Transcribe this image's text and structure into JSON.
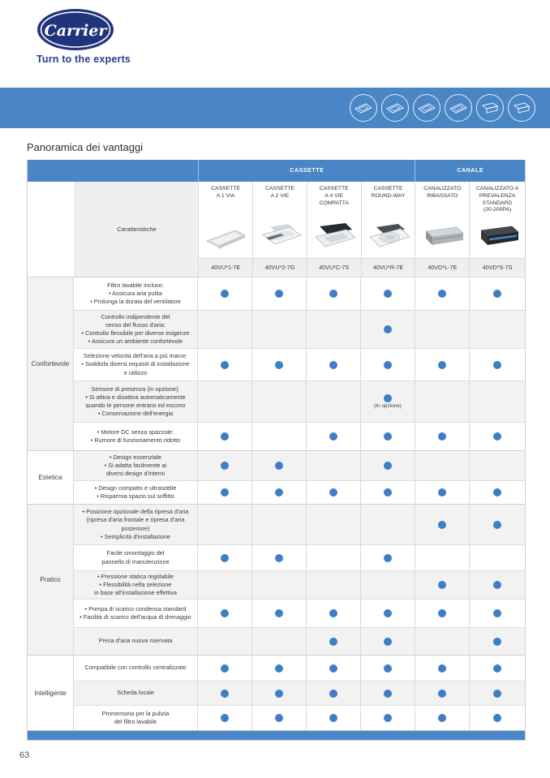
{
  "brand": {
    "logo_text": "Carrier",
    "tagline": "Turn to the experts"
  },
  "page": {
    "title": "Panoramica dei vantaggi",
    "page_number": "63"
  },
  "colors": {
    "accent_blue": "#4a86c6",
    "dot_blue": "#3d7ec6",
    "logo_navy": "#21337b"
  },
  "banner": {
    "icons": [
      "cassette-1-via-icon",
      "cassette-2-vie-icon",
      "cassette-4-vie-compatta-icon",
      "cassette-round-way-icon",
      "canalizzato-ribassato-icon",
      "canalizzato-standard-icon"
    ]
  },
  "table": {
    "top_header": [
      {
        "label": "",
        "span": 2
      },
      {
        "label": "CASSETTE",
        "span": 4
      },
      {
        "label": "CANALE",
        "span": 2
      }
    ],
    "characteristics_label": "Caratteristiche",
    "products": [
      {
        "name": "CASSETTE\nA 1 VIA",
        "model": "40VU*1-7E",
        "icon": "cassette-1-via"
      },
      {
        "name": "CASSETTE\nA 2 VIE",
        "model": "40VU*2-7G",
        "icon": "cassette-2-vie"
      },
      {
        "name": "CASSETTE\nA 4 VIE\nCOMPATTA",
        "model": "40VU*C-7S",
        "icon": "cassette-4-vie-compatta"
      },
      {
        "name": "CASSETTE\nROUND-WAY",
        "model": "40VU*R-7E",
        "icon": "cassette-round-way"
      },
      {
        "name": "CANALIZZATO\nRIBASSATO",
        "model": "40VD*L-7E",
        "icon": "canalizzato-ribassato"
      },
      {
        "name": "CANALIZZATO A\nPREVALENZA\nSTANDARD\n(20-200PA)",
        "model": "40VD*S-7S",
        "icon": "canalizzato-standard"
      }
    ],
    "sections": [
      {
        "label": "Confortevole",
        "rows": [
          {
            "text": "Filtro lavabile incluso:\n• Assicura aria pulita\n• Prolunga la durata del ventilatore",
            "dots": [
              1,
              1,
              1,
              1,
              1,
              1
            ]
          },
          {
            "text": "Controllo indipendente del\nsenso del flusso d'aria:\n• Controllo flessibile per diverse esigenze\n• Assicura un ambiente confortevole",
            "dots": [
              0,
              0,
              0,
              1,
              0,
              0
            ]
          },
          {
            "text": "Selezione velocità dell'aria a più marce:\n• Soddisfa diversi requisiti di installazione\ne utilizzo",
            "dots": [
              1,
              1,
              1,
              1,
              1,
              1
            ]
          },
          {
            "text": "Sensore di presenza (in opzione):\n• Si attiva e disattiva automaticamente\nquando le persone entrano ed escono\n• Conservazione dell'energia",
            "dots": [
              0,
              0,
              0,
              1,
              0,
              0
            ],
            "note": "(In opzione)",
            "note_col": 3
          },
          {
            "text": "• Motore DC senza spazzole:\n• Rumore di funzionamento ridotto",
            "dots": [
              1,
              0,
              1,
              1,
              1,
              1
            ]
          }
        ]
      },
      {
        "label": "Estetica",
        "rows": [
          {
            "text": "• Design essenziale\n• Si adatta facilmente ai\ndiversi design d'interni",
            "dots": [
              1,
              1,
              0,
              1,
              0,
              0
            ]
          },
          {
            "text": "• Design compatto e ultrasottile\n• Risparmia spazio sul soffitto",
            "dots": [
              1,
              1,
              1,
              1,
              1,
              1
            ]
          }
        ]
      },
      {
        "label": "Pratico",
        "rows": [
          {
            "text": "• Posizione opzionale della ripresa d'aria\n(ripresa d'aria frontale e ripresa d'aria\nposteriore)\n• Semplicità d'installazione",
            "dots": [
              0,
              0,
              0,
              0,
              1,
              1
            ]
          },
          {
            "text": "Facile smontaggio del\npannello di manutenzione",
            "dots": [
              1,
              1,
              0,
              1,
              0,
              0
            ]
          },
          {
            "text": "• Pressione statica regolabile\n• Flessibilità nella selezione\nin base all'installazione effettiva",
            "dots": [
              0,
              0,
              0,
              0,
              1,
              1
            ]
          },
          {
            "text": "• Pompa di scarico condensa standard\n• Facilità di scarico dell'acqua di drenaggio",
            "dots": [
              1,
              1,
              1,
              1,
              1,
              1
            ]
          },
          {
            "text": "Presa d'aria nuova riservata",
            "dots": [
              0,
              0,
              1,
              1,
              0,
              1
            ]
          }
        ]
      },
      {
        "label": "Intelligente",
        "rows": [
          {
            "text": "Compatibile con controllo centralizzato",
            "dots": [
              1,
              1,
              1,
              1,
              1,
              1
            ]
          },
          {
            "text": "Scheda locale",
            "dots": [
              1,
              1,
              1,
              1,
              1,
              1
            ]
          },
          {
            "text": "Promemoria per la pulizia\ndel filtro lavabile",
            "dots": [
              1,
              1,
              1,
              1,
              1,
              1
            ]
          }
        ]
      }
    ]
  }
}
